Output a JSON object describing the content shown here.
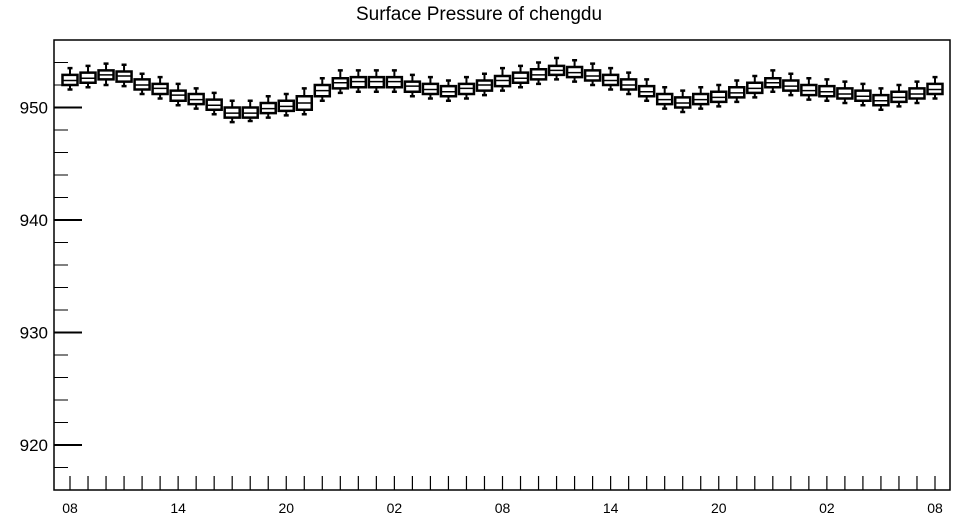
{
  "chart_data": {
    "type": "box",
    "title": "Surface Pressure of chengdu",
    "xlabel": "",
    "ylabel": "",
    "y_ticks": [
      "950",
      "940",
      "930",
      "920"
    ],
    "x_tick_labels": [
      "08",
      "14",
      "20",
      "02",
      "08",
      "14",
      "20",
      "02",
      "08"
    ],
    "ylim": [
      916,
      956
    ],
    "grid": false,
    "color": "#000000",
    "boxes": [
      {
        "x": 0,
        "median": 952.4,
        "q1": 952.0,
        "q3": 952.9,
        "whisker_low": 951.6,
        "whisker_high": 953.5
      },
      {
        "x": 1,
        "median": 952.6,
        "q1": 952.2,
        "q3": 953.1,
        "whisker_low": 951.8,
        "whisker_high": 953.7
      },
      {
        "x": 2,
        "median": 952.9,
        "q1": 952.5,
        "q3": 953.3,
        "whisker_low": 952.0,
        "whisker_high": 953.9
      },
      {
        "x": 3,
        "median": 952.8,
        "q1": 952.3,
        "q3": 953.2,
        "whisker_low": 951.9,
        "whisker_high": 953.8
      },
      {
        "x": 4,
        "median": 952.0,
        "q1": 951.6,
        "q3": 952.5,
        "whisker_low": 951.2,
        "whisker_high": 953.0
      },
      {
        "x": 5,
        "median": 951.7,
        "q1": 951.2,
        "q3": 952.1,
        "whisker_low": 950.8,
        "whisker_high": 952.7
      },
      {
        "x": 6,
        "median": 951.1,
        "q1": 950.6,
        "q3": 951.5,
        "whisker_low": 950.2,
        "whisker_high": 952.1
      },
      {
        "x": 7,
        "median": 950.7,
        "q1": 950.3,
        "q3": 951.2,
        "whisker_low": 949.9,
        "whisker_high": 951.7
      },
      {
        "x": 8,
        "median": 950.2,
        "q1": 949.8,
        "q3": 950.7,
        "whisker_low": 949.4,
        "whisker_high": 951.3
      },
      {
        "x": 9,
        "median": 949.5,
        "q1": 949.1,
        "q3": 950.0,
        "whisker_low": 948.7,
        "whisker_high": 950.6
      },
      {
        "x": 10,
        "median": 949.5,
        "q1": 949.1,
        "q3": 950.0,
        "whisker_low": 948.8,
        "whisker_high": 950.6
      },
      {
        "x": 11,
        "median": 949.9,
        "q1": 949.5,
        "q3": 950.4,
        "whisker_low": 949.1,
        "whisker_high": 951.0
      },
      {
        "x": 12,
        "median": 950.1,
        "q1": 949.7,
        "q3": 950.6,
        "whisker_low": 949.3,
        "whisker_high": 951.2
      },
      {
        "x": 13,
        "median": 950.4,
        "q1": 949.8,
        "q3": 951.0,
        "whisker_low": 949.4,
        "whisker_high": 951.7
      },
      {
        "x": 14,
        "median": 951.5,
        "q1": 951.0,
        "q3": 952.0,
        "whisker_low": 950.6,
        "whisker_high": 952.6
      },
      {
        "x": 15,
        "median": 952.2,
        "q1": 951.7,
        "q3": 952.6,
        "whisker_low": 951.3,
        "whisker_high": 953.3
      },
      {
        "x": 16,
        "median": 952.3,
        "q1": 951.8,
        "q3": 952.7,
        "whisker_low": 951.4,
        "whisker_high": 953.3
      },
      {
        "x": 17,
        "median": 952.3,
        "q1": 951.8,
        "q3": 952.7,
        "whisker_low": 951.4,
        "whisker_high": 953.3
      },
      {
        "x": 18,
        "median": 952.3,
        "q1": 951.8,
        "q3": 952.7,
        "whisker_low": 951.4,
        "whisker_high": 953.3
      },
      {
        "x": 19,
        "median": 951.9,
        "q1": 951.4,
        "q3": 952.3,
        "whisker_low": 951.0,
        "whisker_high": 952.9
      },
      {
        "x": 20,
        "median": 951.6,
        "q1": 951.2,
        "q3": 952.1,
        "whisker_low": 950.8,
        "whisker_high": 952.7
      },
      {
        "x": 21,
        "median": 951.4,
        "q1": 951.0,
        "q3": 951.9,
        "whisker_low": 950.6,
        "whisker_high": 952.4
      },
      {
        "x": 22,
        "median": 951.7,
        "q1": 951.2,
        "q3": 952.1,
        "whisker_low": 950.8,
        "whisker_high": 952.7
      },
      {
        "x": 23,
        "median": 952.0,
        "q1": 951.5,
        "q3": 952.4,
        "whisker_low": 951.1,
        "whisker_high": 953.0
      },
      {
        "x": 24,
        "median": 952.4,
        "q1": 951.9,
        "q3": 952.8,
        "whisker_low": 951.5,
        "whisker_high": 953.5
      },
      {
        "x": 25,
        "median": 952.6,
        "q1": 952.2,
        "q3": 953.1,
        "whisker_low": 951.8,
        "whisker_high": 953.7
      },
      {
        "x": 26,
        "median": 952.9,
        "q1": 952.5,
        "q3": 953.4,
        "whisker_low": 952.1,
        "whisker_high": 954.0
      },
      {
        "x": 27,
        "median": 953.3,
        "q1": 952.9,
        "q3": 953.7,
        "whisker_low": 952.5,
        "whisker_high": 954.4
      },
      {
        "x": 28,
        "median": 953.1,
        "q1": 952.7,
        "q3": 953.6,
        "whisker_low": 952.3,
        "whisker_high": 954.2
      },
      {
        "x": 29,
        "median": 952.8,
        "q1": 952.4,
        "q3": 953.3,
        "whisker_low": 952.0,
        "whisker_high": 953.9
      },
      {
        "x": 30,
        "median": 952.4,
        "q1": 952.0,
        "q3": 952.9,
        "whisker_low": 951.6,
        "whisker_high": 953.5
      },
      {
        "x": 31,
        "median": 952.0,
        "q1": 951.6,
        "q3": 952.5,
        "whisker_low": 951.2,
        "whisker_high": 953.1
      },
      {
        "x": 32,
        "median": 951.4,
        "q1": 951.0,
        "q3": 951.9,
        "whisker_low": 950.6,
        "whisker_high": 952.5
      },
      {
        "x": 33,
        "median": 950.7,
        "q1": 950.3,
        "q3": 951.2,
        "whisker_low": 949.9,
        "whisker_high": 951.8
      },
      {
        "x": 34,
        "median": 950.4,
        "q1": 950.0,
        "q3": 950.9,
        "whisker_low": 949.6,
        "whisker_high": 951.5
      },
      {
        "x": 35,
        "median": 950.7,
        "q1": 950.3,
        "q3": 951.2,
        "whisker_low": 949.9,
        "whisker_high": 951.8
      },
      {
        "x": 36,
        "median": 950.9,
        "q1": 950.5,
        "q3": 951.4,
        "whisker_low": 950.1,
        "whisker_high": 952.0
      },
      {
        "x": 37,
        "median": 951.3,
        "q1": 950.9,
        "q3": 951.8,
        "whisker_low": 950.5,
        "whisker_high": 952.4
      },
      {
        "x": 38,
        "median": 951.7,
        "q1": 951.3,
        "q3": 952.2,
        "whisker_low": 950.9,
        "whisker_high": 952.8
      },
      {
        "x": 39,
        "median": 952.2,
        "q1": 951.8,
        "q3": 952.6,
        "whisker_low": 951.4,
        "whisker_high": 953.3
      },
      {
        "x": 40,
        "median": 951.9,
        "q1": 951.5,
        "q3": 952.4,
        "whisker_low": 951.1,
        "whisker_high": 953.0
      },
      {
        "x": 41,
        "median": 951.5,
        "q1": 951.1,
        "q3": 952.0,
        "whisker_low": 950.7,
        "whisker_high": 952.6
      },
      {
        "x": 42,
        "median": 951.4,
        "q1": 951.0,
        "q3": 951.9,
        "whisker_low": 950.6,
        "whisker_high": 952.5
      },
      {
        "x": 43,
        "median": 951.2,
        "q1": 950.8,
        "q3": 951.7,
        "whisker_low": 950.4,
        "whisker_high": 952.3
      },
      {
        "x": 44,
        "median": 951.0,
        "q1": 950.6,
        "q3": 951.5,
        "whisker_low": 950.2,
        "whisker_high": 952.1
      },
      {
        "x": 45,
        "median": 950.6,
        "q1": 950.2,
        "q3": 951.1,
        "whisker_low": 949.8,
        "whisker_high": 951.7
      },
      {
        "x": 46,
        "median": 950.9,
        "q1": 950.5,
        "q3": 951.4,
        "whisker_low": 950.1,
        "whisker_high": 952.0
      },
      {
        "x": 47,
        "median": 951.2,
        "q1": 950.8,
        "q3": 951.7,
        "whisker_low": 950.4,
        "whisker_high": 952.3
      },
      {
        "x": 48,
        "median": 951.6,
        "q1": 951.2,
        "q3": 952.1,
        "whisker_low": 950.8,
        "whisker_high": 952.7
      }
    ]
  }
}
